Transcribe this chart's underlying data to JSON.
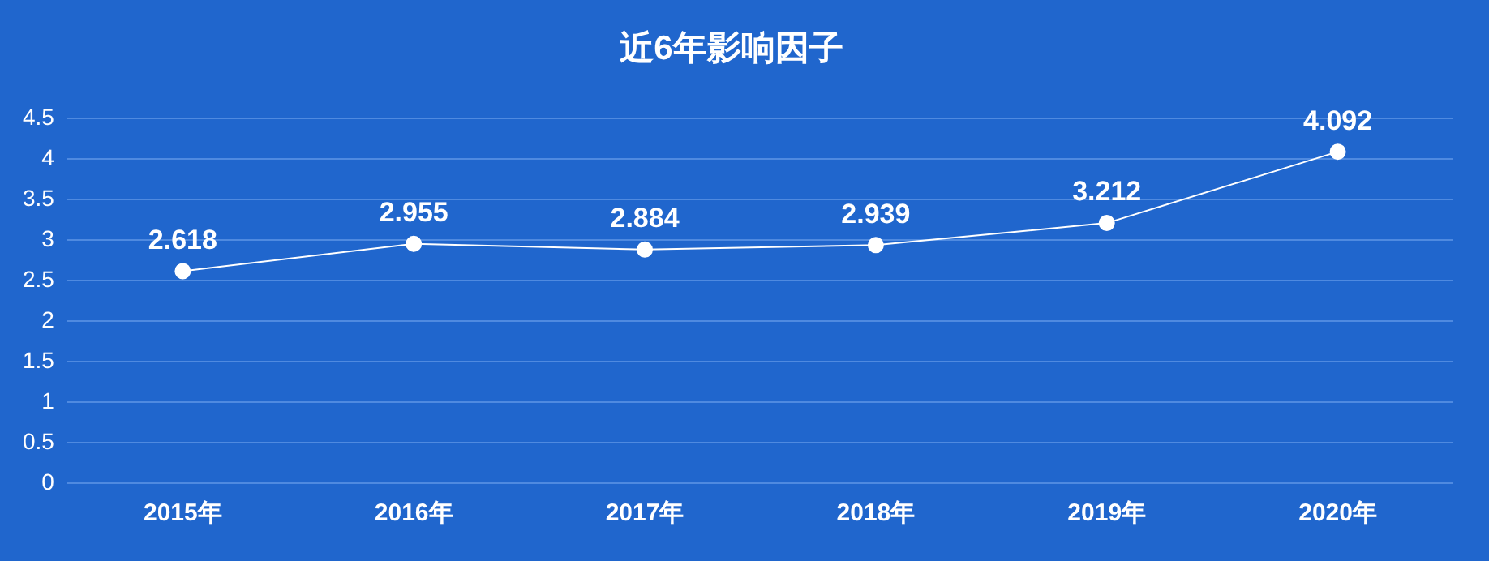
{
  "chart_data": {
    "type": "line",
    "title": "近6年影响因子",
    "categories": [
      "2015年",
      "2016年",
      "2017年",
      "2018年",
      "2019年",
      "2020年"
    ],
    "series": [
      {
        "color": "#ffffff",
        "values": [
          2.618,
          2.955,
          2.884,
          2.939,
          3.212,
          4.092
        ]
      }
    ],
    "ylim": [
      0,
      4.5
    ],
    "yticks": [
      0,
      0.5,
      1,
      1.5,
      2,
      2.5,
      3,
      3.5,
      4,
      4.5
    ],
    "grid": "y",
    "legend": false,
    "marker": "circle",
    "line_style": "solid",
    "data_labels": true
  }
}
